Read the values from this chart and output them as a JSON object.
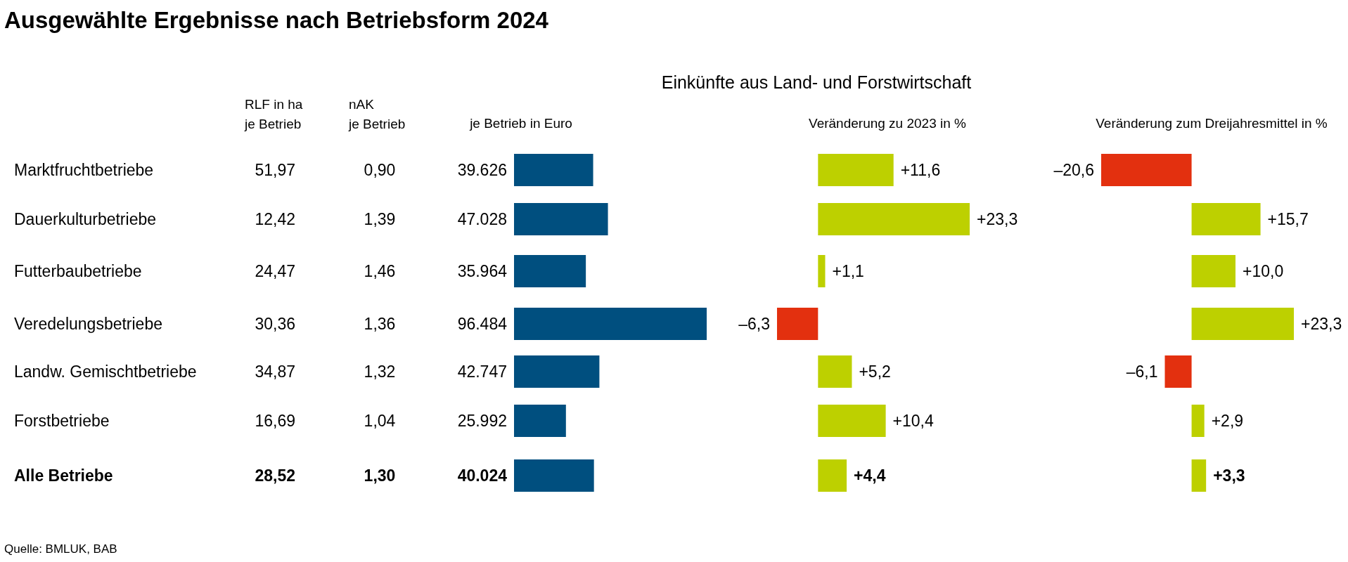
{
  "chart_data": [
    {
      "type": "other",
      "title": "Ausgewählte Ergebnisse nach Betriebsform 2024",
      "annotations": [
        "Quelle: BMLUK, BAB"
      ],
      "categories": [
        "RLF in ha\nje Betrieb",
        "nAK\nje Betrieb"
      ],
      "cell_labels": [
        [
          "51,97",
          "0,90"
        ],
        [
          "12,42",
          "1,39"
        ],
        [
          "24,47",
          "1,46"
        ],
        [
          "30,36",
          "1,36"
        ],
        [
          "34,87",
          "1,32"
        ],
        [
          "16,69",
          "1,04"
        ],
        [
          "28,52",
          "1,30"
        ]
      ]
    },
    {
      "type": "bar",
      "orientation": "horizontal",
      "subtitle": "Einkünfte aus Land- und Forstwirtschaft",
      "title": "je Betrieb in Euro",
      "categories": [
        "Marktfruchtbetriebe",
        "Dauerkulturbetriebe",
        "Futterbaubetriebe",
        "Veredelungsbetriebe",
        "Landw. Gemischtbetriebe",
        "Forstbetriebe",
        "Alle Betriebe"
      ],
      "values": [
        39626,
        47028,
        35964,
        96484,
        42747,
        25992,
        40024
      ],
      "color": "#004f7f",
      "value_labels": [
        "39.626",
        "47.028",
        "35.964",
        "96.484",
        "42.747",
        "25.992",
        "40.024"
      ]
    },
    {
      "type": "bar",
      "orientation": "horizontal",
      "title": "Veränderung zu 2023 in %",
      "values": [
        11.6,
        23.3,
        1.1,
        -6.3,
        5.2,
        10.4,
        4.4
      ],
      "colors": [
        "#bdd000",
        "#bdd000",
        "#bdd000",
        "#e3300f",
        "#bdd000",
        "#bdd000",
        "#bdd000"
      ],
      "value_labels": [
        "+11,6",
        "+23,3",
        "+1,1",
        "–6,3",
        "+5,2",
        "+10,4",
        "+4,4"
      ]
    },
    {
      "type": "bar",
      "orientation": "horizontal",
      "title": "Veränderung zum Dreijahresmittel in %",
      "values": [
        -20.6,
        15.7,
        10.0,
        23.3,
        -6.1,
        2.9,
        3.3
      ],
      "colors": [
        "#e3300f",
        "#bdd000",
        "#bdd000",
        "#bdd000",
        "#e3300f",
        "#bdd000",
        "#bdd000"
      ],
      "value_labels": [
        "–20,6",
        "+15,7",
        "+10,0",
        "+23,3",
        "–6,1",
        "+2,9",
        "+3,3"
      ]
    }
  ]
}
